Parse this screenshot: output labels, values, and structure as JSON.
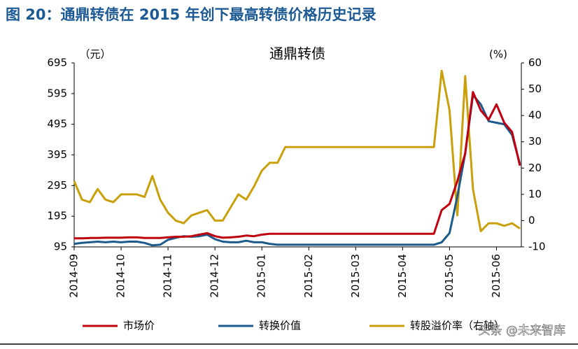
{
  "title": "图 20：通鼎转债在 2015 年创下最高转债价格历史记录",
  "watermark": "头条 @未来智库",
  "chart_data": {
    "type": "line",
    "title": "通鼎转债",
    "y_label": "（元）",
    "y2_label": "(%)",
    "categories": [
      "2014-09",
      null,
      null,
      null,
      null,
      null,
      "2014-10",
      null,
      null,
      null,
      null,
      null,
      "2014-11",
      null,
      null,
      null,
      null,
      null,
      "2014-12",
      null,
      null,
      null,
      null,
      null,
      "2015-01",
      null,
      null,
      null,
      null,
      null,
      "2015-02",
      null,
      null,
      null,
      null,
      null,
      "2015-03",
      null,
      null,
      null,
      null,
      null,
      "2015-04",
      null,
      null,
      null,
      null,
      null,
      "2015-05",
      null,
      null,
      null,
      null,
      null,
      "2015-06",
      null,
      null,
      null
    ],
    "series": [
      {
        "name": "市场价",
        "color": "#c0000f",
        "values": [
          123,
          123,
          124,
          124,
          125,
          125,
          125,
          126,
          126,
          124,
          124,
          124,
          126,
          128,
          128,
          130,
          135,
          140,
          130,
          125,
          126,
          128,
          132,
          130,
          135,
          138,
          138,
          138,
          138,
          138,
          138,
          138,
          138,
          138,
          138,
          138,
          138,
          138,
          138,
          138,
          138,
          138,
          138,
          138,
          138,
          138,
          138,
          215,
          235,
          310,
          400,
          600,
          540,
          510,
          560,
          500,
          470,
          360
        ]
      },
      {
        "name": "转换价值",
        "color": "#1b5b8c",
        "values": [
          105,
          108,
          110,
          112,
          110,
          112,
          110,
          112,
          112,
          108,
          100,
          102,
          118,
          125,
          130,
          128,
          130,
          135,
          120,
          112,
          110,
          110,
          115,
          110,
          110,
          105,
          102,
          102,
          102,
          102,
          102,
          102,
          102,
          102,
          102,
          102,
          102,
          102,
          102,
          102,
          102,
          102,
          102,
          102,
          102,
          102,
          102,
          110,
          140,
          260,
          400,
          590,
          560,
          505,
          500,
          495,
          460,
          365
        ]
      },
      {
        "name": "转股溢价率（右轴）",
        "color": "#c9a00a",
        "axis": "y2",
        "values": [
          15,
          8,
          7,
          12,
          8,
          7,
          10,
          10,
          10,
          9,
          17,
          8,
          3,
          0,
          -1,
          2,
          3,
          4,
          0,
          0,
          5,
          10,
          8,
          13,
          19,
          22,
          22,
          28,
          28,
          28,
          28,
          28,
          28,
          28,
          28,
          28,
          28,
          28,
          28,
          28,
          28,
          28,
          28,
          28,
          28,
          28,
          28,
          57,
          42,
          2,
          55,
          12,
          -4,
          -1,
          -1,
          -2,
          -1,
          -3
        ]
      }
    ],
    "ylim": [
      95,
      695
    ],
    "yticks": [
      95,
      195,
      295,
      395,
      495,
      595,
      695
    ],
    "y2lim": [
      -10,
      60
    ],
    "y2ticks": [
      -10,
      0,
      10,
      20,
      30,
      40,
      50,
      60
    ]
  }
}
